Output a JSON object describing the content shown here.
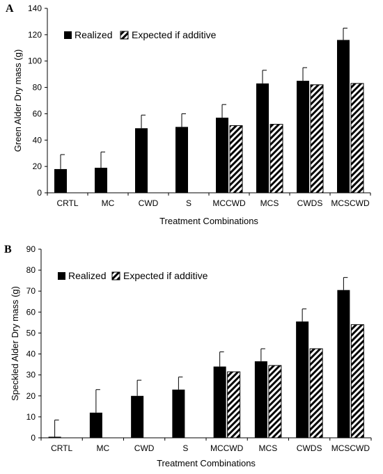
{
  "chart_data": [
    {
      "type": "bar",
      "panel": "A",
      "categories": [
        "CRTL",
        "MC",
        "CWD",
        "S",
        "MCCWD",
        "MCS",
        "CWDS",
        "MCSCWD"
      ],
      "series": [
        {
          "name": "Realized",
          "values": [
            18,
            19,
            49,
            50,
            57,
            83,
            85,
            116
          ],
          "errors": [
            11,
            12,
            10,
            10,
            10,
            10,
            10,
            9
          ],
          "color": "#000000",
          "pattern": "solid"
        },
        {
          "name": "Expected if additive",
          "values": [
            null,
            null,
            null,
            null,
            51,
            52,
            82,
            83
          ],
          "color": "#000000",
          "pattern": "hatched"
        }
      ],
      "xlabel": "Treatment Combinations",
      "ylabel": "Green Alder Dry mass (g)",
      "ylim": [
        0,
        140
      ],
      "yticks": [
        "0",
        "20",
        "40",
        "60",
        "80",
        "100",
        "120",
        "140"
      ],
      "legend": "top-left",
      "grid": false
    },
    {
      "type": "bar",
      "panel": "B",
      "categories": [
        "CRTL",
        "MC",
        "CWD",
        "S",
        "MCCWD",
        "MCS",
        "CWDS",
        "MCSCWD"
      ],
      "series": [
        {
          "name": "Realized",
          "values": [
            0.5,
            12,
            20,
            23,
            34,
            36.5,
            55.5,
            70.5
          ],
          "errors": [
            8,
            11,
            7.5,
            6,
            7,
            6,
            6,
            6
          ],
          "color": "#000000",
          "pattern": "solid"
        },
        {
          "name": "Expected if additive",
          "values": [
            null,
            null,
            null,
            null,
            31.5,
            34.5,
            42.5,
            54
          ],
          "color": "#000000",
          "pattern": "hatched"
        }
      ],
      "xlabel": "Treatment Combinations",
      "ylabel": "Speckled Alder Dry mass (g)",
      "ylim": [
        0,
        90
      ],
      "yticks": [
        "0",
        "10",
        "20",
        "30",
        "40",
        "50",
        "60",
        "70",
        "80",
        "90"
      ],
      "legend": "top-left",
      "grid": false
    }
  ]
}
